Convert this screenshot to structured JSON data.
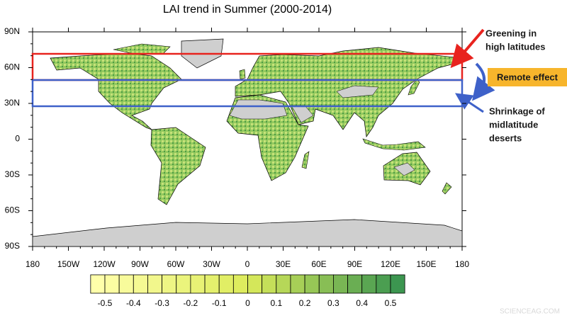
{
  "title": "LAI trend in Summer (2000-2014)",
  "lat_labels": [
    "90N",
    "60N",
    "30N",
    "0",
    "30S",
    "60S",
    "90S"
  ],
  "lon_labels": [
    "180",
    "150W",
    "120W",
    "90W",
    "60W",
    "30W",
    "0",
    "30E",
    "60E",
    "90E",
    "120E",
    "150E",
    "180"
  ],
  "colorbar": {
    "labels": [
      -0.5,
      -0.4,
      -0.3,
      -0.2,
      -0.1,
      0,
      0.1,
      0.2,
      0.3,
      0.4,
      0.5
    ]
  },
  "annotations": {
    "greening": [
      "Greening in",
      "high latitudes"
    ],
    "remote": "Remote effect",
    "shrinkage": [
      "Shrinkage of",
      "midlatitude",
      "deserts"
    ]
  },
  "watermark": "SCIENCEAG.COM"
}
